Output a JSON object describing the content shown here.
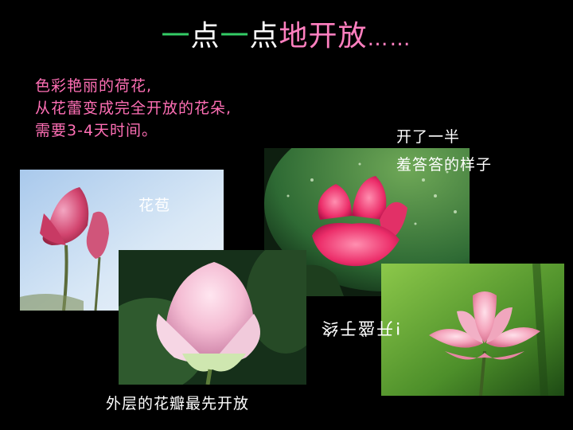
{
  "title": {
    "part1": "一",
    "part2": "点",
    "part3": "一",
    "part4": "点",
    "part5": "地开放",
    "dots": "……"
  },
  "intro": {
    "line1": "色彩艳丽的荷花,",
    "line2": "从花蕾变成完全开放的花朵,",
    "line3": "需要3-4天时间。"
  },
  "labels": {
    "bud": "花苞",
    "half_open_1": "开了一半",
    "half_open_2": "羞答答的样子",
    "outer_petals": "外层的花瓣最先开放",
    "rotated_text": "!开盛于终"
  },
  "colors": {
    "background": "#000000",
    "title_green": "#33cc66",
    "title_pink": "#ff7fbf",
    "intro_pink": "#ff6fb5"
  }
}
